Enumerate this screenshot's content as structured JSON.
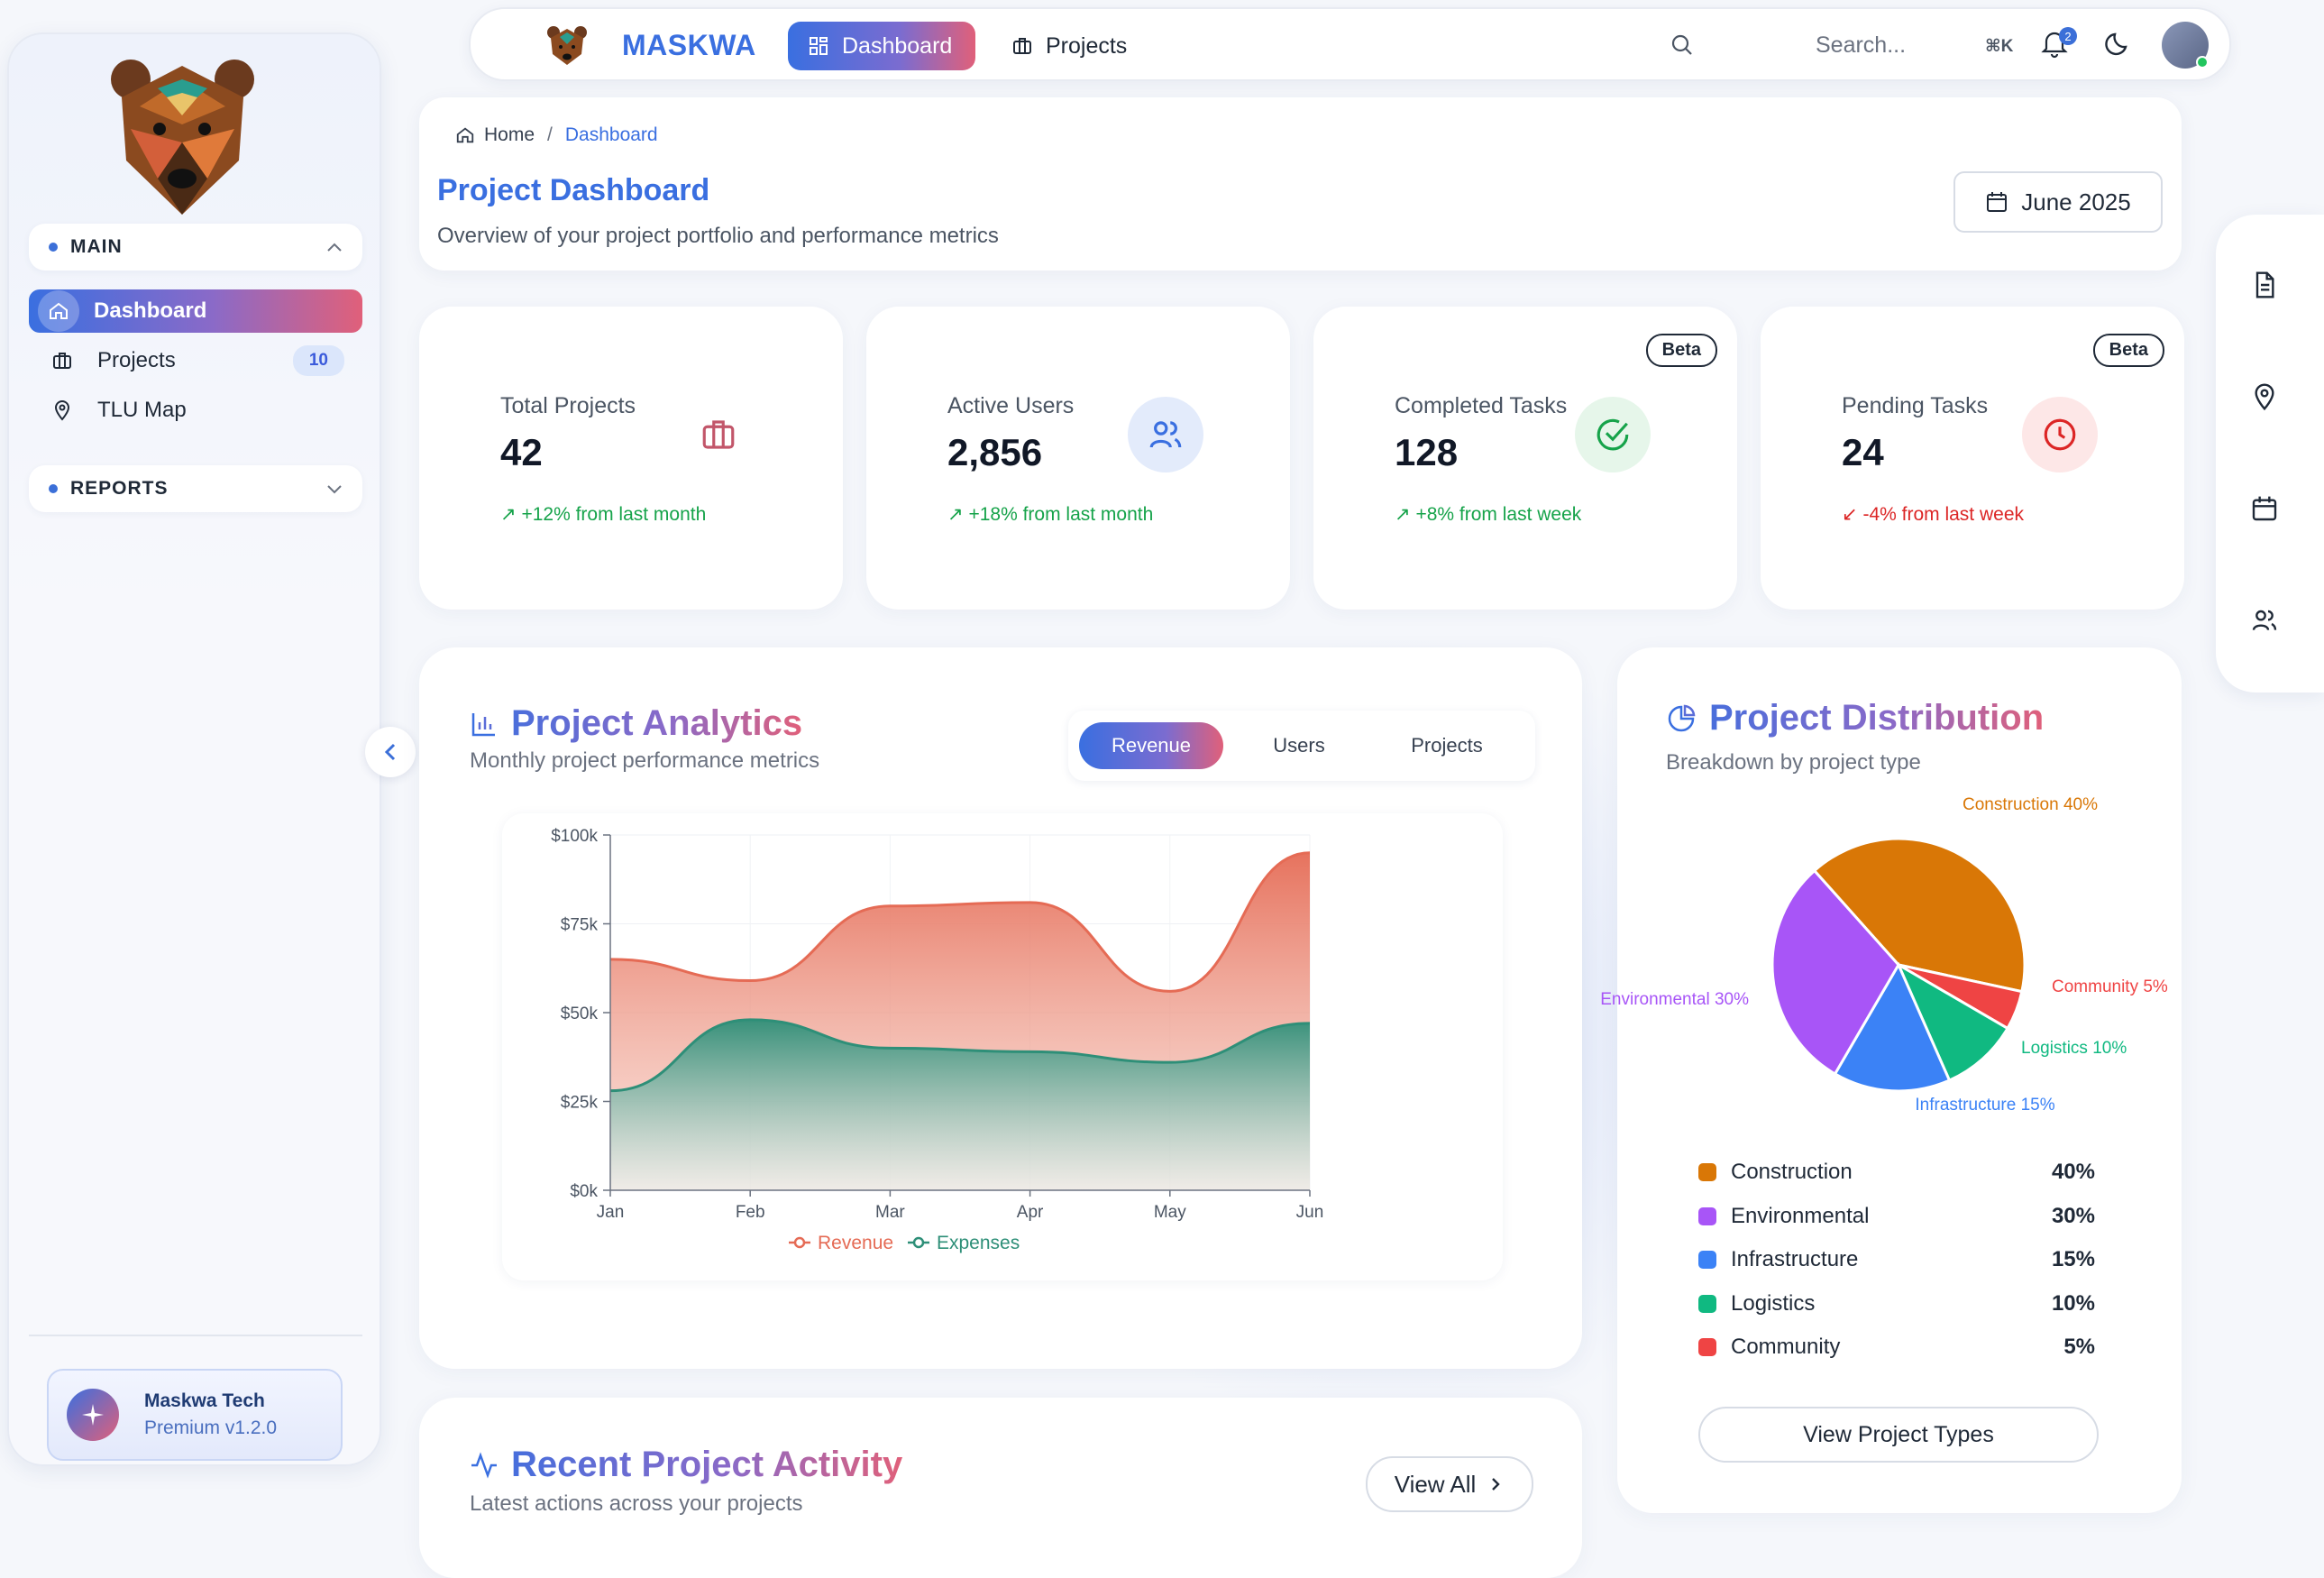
{
  "sidebar": {
    "sections": [
      {
        "label": "MAIN"
      },
      {
        "label": "REPORTS"
      }
    ],
    "items": [
      {
        "label": "Dashboard"
      },
      {
        "label": "Projects",
        "badge": "10"
      },
      {
        "label": "TLU Map"
      }
    ],
    "brand_card": {
      "name": "Maskwa Tech",
      "version": "Premium v1.2.0"
    }
  },
  "topnav": {
    "brand": "MASKWA",
    "tabs": [
      {
        "label": "Dashboard"
      },
      {
        "label": "Projects"
      }
    ],
    "search_placeholder": "Search...",
    "shortcut": "⌘K",
    "notification_count": "2"
  },
  "header": {
    "breadcrumb": {
      "home": "Home",
      "sep": "/",
      "current": "Dashboard"
    },
    "title": "Project Dashboard",
    "subtitle": "Overview of your project portfolio and performance metrics",
    "date": "June 2025"
  },
  "stats": [
    {
      "label": "Total Projects",
      "value": "42",
      "trend": "+12% from last month",
      "trend_icon": "↗",
      "badge": ""
    },
    {
      "label": "Active Users",
      "value": "2,856",
      "trend": "+18% from last month",
      "trend_icon": "↗",
      "badge": ""
    },
    {
      "label": "Completed Tasks",
      "value": "128",
      "trend": "+8% from last week",
      "trend_icon": "↗",
      "badge": "Beta"
    },
    {
      "label": "Pending Tasks",
      "value": "24",
      "trend": "-4% from last week",
      "trend_icon": "↙",
      "badge": "Beta"
    }
  ],
  "analytics": {
    "title": "Project Analytics",
    "subtitle": "Monthly project performance metrics",
    "tabs": [
      {
        "label": "Revenue"
      },
      {
        "label": "Users"
      },
      {
        "label": "Projects"
      }
    ]
  },
  "distribution": {
    "title": "Project Distribution",
    "subtitle": "Breakdown by project type",
    "button": "View Project Types"
  },
  "recent": {
    "title": "Recent Project Activity",
    "subtitle": "Latest actions across your projects",
    "button": "View All"
  },
  "colors": {
    "accent": "#3a6fe0",
    "revenue": "#e56b55",
    "expenses": "#2e8f78",
    "construction": "#d97706",
    "environmental": "#a855f7",
    "infrastructure": "#3b82f6",
    "logistics": "#10b981",
    "community": "#ef4444"
  },
  "chart_data": [
    {
      "type": "area",
      "x": [
        "Jan",
        "Feb",
        "Mar",
        "Apr",
        "May",
        "Jun"
      ],
      "series": [
        {
          "name": "Revenue",
          "values": [
            65000,
            59000,
            80000,
            81000,
            56000,
            95000
          ]
        },
        {
          "name": "Expenses",
          "values": [
            28000,
            48000,
            40000,
            39000,
            36000,
            47000
          ]
        }
      ],
      "ylim": [
        0,
        100000
      ],
      "yticks": [
        "$0k",
        "$25k",
        "$50k",
        "$75k",
        "$100k"
      ],
      "grid": true,
      "legend": "bottom"
    },
    {
      "type": "pie",
      "slices": [
        {
          "label": "Construction",
          "value": 40,
          "display": "40%",
          "callout": "Construction 40%"
        },
        {
          "label": "Environmental",
          "value": 30,
          "display": "30%",
          "callout": "Environmental 30%"
        },
        {
          "label": "Infrastructure",
          "value": 15,
          "display": "15%",
          "callout": "Infrastructure 15%"
        },
        {
          "label": "Logistics",
          "value": 10,
          "display": "10%",
          "callout": "Logistics 10%"
        },
        {
          "label": "Community",
          "value": 5,
          "display": "5%",
          "callout": "Community 5%"
        }
      ]
    }
  ]
}
